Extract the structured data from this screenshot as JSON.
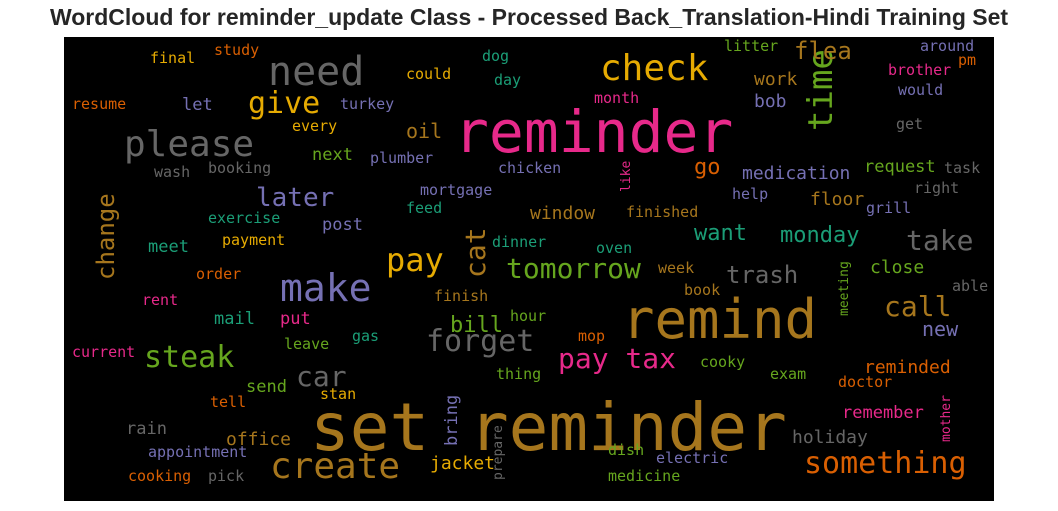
{
  "title": "WordCloud for reminder_update Class - Processed Back_Translation-Hindi Training Set",
  "chart_data": {
    "type": "wordcloud",
    "title": "WordCloud for reminder_update Class - Processed Back_Translation-Hindi Training Set",
    "background": "#000000",
    "palette": [
      "#e7298a",
      "#a6761d",
      "#e6ab02",
      "#66a61e",
      "#1b9e77",
      "#7570b3",
      "#d95f02",
      "#666666"
    ],
    "words": [
      {
        "text": "set reminder",
        "weight": 1.0,
        "color": "#a6761d",
        "orientation": "horizontal"
      },
      {
        "text": "reminder",
        "weight": 0.87,
        "color": "#e7298a",
        "orientation": "horizontal"
      },
      {
        "text": "remind",
        "weight": 0.82,
        "color": "#a6761d",
        "orientation": "horizontal"
      },
      {
        "text": "need",
        "weight": 0.55,
        "color": "#666666",
        "orientation": "horizontal"
      },
      {
        "text": "make",
        "weight": 0.55,
        "color": "#7570b3",
        "orientation": "horizontal"
      },
      {
        "text": "check",
        "weight": 0.52,
        "color": "#e6ab02",
        "orientation": "horizontal"
      },
      {
        "text": "create",
        "weight": 0.52,
        "color": "#a6761d",
        "orientation": "horizontal"
      },
      {
        "text": "please",
        "weight": 0.5,
        "color": "#666666",
        "orientation": "horizontal"
      },
      {
        "text": "something",
        "weight": 0.44,
        "color": "#d95f02",
        "orientation": "horizontal"
      },
      {
        "text": "forget",
        "weight": 0.42,
        "color": "#666666",
        "orientation": "horizontal"
      },
      {
        "text": "tomorrow",
        "weight": 0.42,
        "color": "#66a61e",
        "orientation": "horizontal"
      },
      {
        "text": "pay",
        "weight": 0.42,
        "color": "#e6ab02",
        "orientation": "horizontal"
      },
      {
        "text": "time",
        "weight": 0.42,
        "color": "#66a61e",
        "orientation": "vertical"
      },
      {
        "text": "give",
        "weight": 0.4,
        "color": "#e6ab02",
        "orientation": "horizontal"
      },
      {
        "text": "steak",
        "weight": 0.4,
        "color": "#66a61e",
        "orientation": "horizontal"
      },
      {
        "text": "car",
        "weight": 0.4,
        "color": "#666666",
        "orientation": "horizontal"
      },
      {
        "text": "pay tax",
        "weight": 0.38,
        "color": "#e7298a",
        "orientation": "horizontal"
      },
      {
        "text": "take",
        "weight": 0.38,
        "color": "#666666",
        "orientation": "horizontal"
      },
      {
        "text": "change",
        "weight": 0.38,
        "color": "#a6761d",
        "orientation": "vertical"
      },
      {
        "text": "cat",
        "weight": 0.38,
        "color": "#a6761d",
        "orientation": "vertical"
      },
      {
        "text": "later",
        "weight": 0.34,
        "color": "#7570b3",
        "orientation": "horizontal"
      },
      {
        "text": "call",
        "weight": 0.34,
        "color": "#a6761d",
        "orientation": "horizontal"
      },
      {
        "text": "trash",
        "weight": 0.3,
        "color": "#666666",
        "orientation": "horizontal"
      },
      {
        "text": "bill",
        "weight": 0.3,
        "color": "#66a61e",
        "orientation": "horizontal"
      },
      {
        "text": "flea",
        "weight": 0.3,
        "color": "#a6761d",
        "orientation": "horizontal"
      },
      {
        "text": "want",
        "weight": 0.28,
        "color": "#1b9e77",
        "orientation": "horizontal"
      },
      {
        "text": "monday",
        "weight": 0.28,
        "color": "#1b9e77",
        "orientation": "horizontal"
      },
      {
        "text": "go",
        "weight": 0.28,
        "color": "#d95f02",
        "orientation": "horizontal"
      },
      {
        "text": "new",
        "weight": 0.26,
        "color": "#7570b3",
        "orientation": "horizontal"
      },
      {
        "text": "medication",
        "weight": 0.24,
        "color": "#7570b3",
        "orientation": "horizontal"
      },
      {
        "text": "oil",
        "weight": 0.24,
        "color": "#a6761d",
        "orientation": "horizontal"
      },
      {
        "text": "jacket",
        "weight": 0.24,
        "color": "#e6ab02",
        "orientation": "horizontal"
      },
      {
        "text": "reminded",
        "weight": 0.24,
        "color": "#d95f02",
        "orientation": "horizontal"
      },
      {
        "text": "holiday",
        "weight": 0.24,
        "color": "#666666",
        "orientation": "horizontal"
      },
      {
        "text": "office",
        "weight": 0.24,
        "color": "#a6761d",
        "orientation": "horizontal"
      },
      {
        "text": "window",
        "weight": 0.24,
        "color": "#a6761d",
        "orientation": "horizontal"
      },
      {
        "text": "floor",
        "weight": 0.24,
        "color": "#a6761d",
        "orientation": "horizontal"
      },
      {
        "text": "close",
        "weight": 0.24,
        "color": "#66a61e",
        "orientation": "horizontal"
      },
      {
        "text": "work",
        "weight": 0.24,
        "color": "#a6761d",
        "orientation": "horizontal"
      },
      {
        "text": "bob",
        "weight": 0.24,
        "color": "#7570b3",
        "orientation": "horizontal"
      },
      {
        "text": "request",
        "weight": 0.22,
        "color": "#66a61e",
        "orientation": "horizontal"
      },
      {
        "text": "remember",
        "weight": 0.22,
        "color": "#e7298a",
        "orientation": "horizontal"
      },
      {
        "text": "bring",
        "weight": 0.22,
        "color": "#7570b3",
        "orientation": "vertical"
      },
      {
        "text": "rain",
        "weight": 0.22,
        "color": "#666666",
        "orientation": "horizontal"
      },
      {
        "text": "send",
        "weight": 0.22,
        "color": "#66a61e",
        "orientation": "horizontal"
      },
      {
        "text": "post",
        "weight": 0.22,
        "color": "#7570b3",
        "orientation": "horizontal"
      },
      {
        "text": "meet",
        "weight": 0.22,
        "color": "#1b9e77",
        "orientation": "horizontal"
      },
      {
        "text": "mail",
        "weight": 0.22,
        "color": "#1b9e77",
        "orientation": "horizontal"
      },
      {
        "text": "put",
        "weight": 0.22,
        "color": "#e7298a",
        "orientation": "horizontal"
      },
      {
        "text": "let",
        "weight": 0.22,
        "color": "#7570b3",
        "orientation": "horizontal"
      },
      {
        "text": "next",
        "weight": 0.22,
        "color": "#66a61e",
        "orientation": "horizontal"
      },
      {
        "text": "stan",
        "weight": 0.2,
        "color": "#e6ab02",
        "orientation": "horizontal"
      },
      {
        "text": "mother",
        "weight": 0.18,
        "color": "#e7298a",
        "orientation": "vertical"
      },
      {
        "text": "meeting",
        "weight": 0.16,
        "color": "#66a61e",
        "orientation": "vertical"
      },
      {
        "text": "prepare",
        "weight": 0.16,
        "color": "#666666",
        "orientation": "vertical"
      },
      {
        "text": "like",
        "weight": 0.16,
        "color": "#e7298a",
        "orientation": "vertical"
      },
      {
        "text": "appointment",
        "weight": 0.18,
        "color": "#7570b3",
        "orientation": "horizontal"
      },
      {
        "text": "cooking",
        "weight": 0.18,
        "color": "#d95f02",
        "orientation": "horizontal"
      },
      {
        "text": "electric",
        "weight": 0.18,
        "color": "#7570b3",
        "orientation": "horizontal"
      },
      {
        "text": "medicine",
        "weight": 0.18,
        "color": "#66a61e",
        "orientation": "horizontal"
      },
      {
        "text": "doctor",
        "weight": 0.18,
        "color": "#d95f02",
        "orientation": "horizontal"
      },
      {
        "text": "exam",
        "weight": 0.18,
        "color": "#66a61e",
        "orientation": "horizontal"
      },
      {
        "text": "cooky",
        "weight": 0.18,
        "color": "#66a61e",
        "orientation": "horizontal"
      },
      {
        "text": "thing",
        "weight": 0.18,
        "color": "#66a61e",
        "orientation": "horizontal"
      },
      {
        "text": "mop",
        "weight": 0.18,
        "color": "#d95f02",
        "orientation": "horizontal"
      },
      {
        "text": "hour",
        "weight": 0.18,
        "color": "#66a61e",
        "orientation": "horizontal"
      },
      {
        "text": "finish",
        "weight": 0.18,
        "color": "#a6761d",
        "orientation": "horizontal"
      },
      {
        "text": "book",
        "weight": 0.18,
        "color": "#a6761d",
        "orientation": "horizontal"
      },
      {
        "text": "week",
        "weight": 0.18,
        "color": "#a6761d",
        "orientation": "horizontal"
      },
      {
        "text": "oven",
        "weight": 0.18,
        "color": "#1b9e77",
        "orientation": "horizontal"
      },
      {
        "text": "dinner",
        "weight": 0.18,
        "color": "#1b9e77",
        "orientation": "horizontal"
      },
      {
        "text": "feed",
        "weight": 0.18,
        "color": "#1b9e77",
        "orientation": "horizontal"
      },
      {
        "text": "finished",
        "weight": 0.18,
        "color": "#a6761d",
        "orientation": "horizontal"
      },
      {
        "text": "mortgage",
        "weight": 0.18,
        "color": "#7570b3",
        "orientation": "horizontal"
      },
      {
        "text": "chicken",
        "weight": 0.18,
        "color": "#7570b3",
        "orientation": "horizontal"
      },
      {
        "text": "plumber",
        "weight": 0.18,
        "color": "#7570b3",
        "orientation": "horizontal"
      },
      {
        "text": "booking",
        "weight": 0.18,
        "color": "#666666",
        "orientation": "horizontal"
      },
      {
        "text": "wash",
        "weight": 0.18,
        "color": "#666666",
        "orientation": "horizontal"
      },
      {
        "text": "exercise",
        "weight": 0.18,
        "color": "#1b9e77",
        "orientation": "horizontal"
      },
      {
        "text": "payment",
        "weight": 0.18,
        "color": "#e6ab02",
        "orientation": "horizontal"
      },
      {
        "text": "order",
        "weight": 0.18,
        "color": "#d95f02",
        "orientation": "horizontal"
      },
      {
        "text": "rent",
        "weight": 0.18,
        "color": "#e7298a",
        "orientation": "horizontal"
      },
      {
        "text": "current",
        "weight": 0.18,
        "color": "#e7298a",
        "orientation": "horizontal"
      },
      {
        "text": "leave",
        "weight": 0.18,
        "color": "#66a61e",
        "orientation": "horizontal"
      },
      {
        "text": "gas",
        "weight": 0.18,
        "color": "#1b9e77",
        "orientation": "horizontal"
      },
      {
        "text": "tell",
        "weight": 0.18,
        "color": "#d95f02",
        "orientation": "horizontal"
      },
      {
        "text": "pick",
        "weight": 0.18,
        "color": "#666666",
        "orientation": "horizontal"
      },
      {
        "text": "dish",
        "weight": 0.18,
        "color": "#66a61e",
        "orientation": "horizontal"
      },
      {
        "text": "resume",
        "weight": 0.16,
        "color": "#d95f02",
        "orientation": "horizontal"
      },
      {
        "text": "final",
        "weight": 0.16,
        "color": "#e6ab02",
        "orientation": "horizontal"
      },
      {
        "text": "study",
        "weight": 0.16,
        "color": "#d95f02",
        "orientation": "horizontal"
      },
      {
        "text": "could",
        "weight": 0.16,
        "color": "#e6ab02",
        "orientation": "horizontal"
      },
      {
        "text": "dog",
        "weight": 0.16,
        "color": "#1b9e77",
        "orientation": "horizontal"
      },
      {
        "text": "day",
        "weight": 0.16,
        "color": "#1b9e77",
        "orientation": "horizontal"
      },
      {
        "text": "turkey",
        "weight": 0.16,
        "color": "#7570b3",
        "orientation": "horizontal"
      },
      {
        "text": "every",
        "weight": 0.16,
        "color": "#e6ab02",
        "orientation": "horizontal"
      },
      {
        "text": "month",
        "weight": 0.16,
        "color": "#e7298a",
        "orientation": "horizontal"
      },
      {
        "text": "litter",
        "weight": 0.16,
        "color": "#66a61e",
        "orientation": "horizontal"
      },
      {
        "text": "around",
        "weight": 0.16,
        "color": "#7570b3",
        "orientation": "horizontal"
      },
      {
        "text": "brother",
        "weight": 0.16,
        "color": "#e7298a",
        "orientation": "horizontal"
      },
      {
        "text": "pm",
        "weight": 0.16,
        "color": "#d95f02",
        "orientation": "horizontal"
      },
      {
        "text": "would",
        "weight": 0.16,
        "color": "#7570b3",
        "orientation": "horizontal"
      },
      {
        "text": "get",
        "weight": 0.16,
        "color": "#666666",
        "orientation": "horizontal"
      },
      {
        "text": "task",
        "weight": 0.16,
        "color": "#666666",
        "orientation": "horizontal"
      },
      {
        "text": "right",
        "weight": 0.16,
        "color": "#666666",
        "orientation": "horizontal"
      },
      {
        "text": "help",
        "weight": 0.16,
        "color": "#7570b3",
        "orientation": "horizontal"
      },
      {
        "text": "grill",
        "weight": 0.16,
        "color": "#7570b3",
        "orientation": "horizontal"
      },
      {
        "text": "able",
        "weight": 0.16,
        "color": "#666666",
        "orientation": "horizontal"
      }
    ]
  }
}
